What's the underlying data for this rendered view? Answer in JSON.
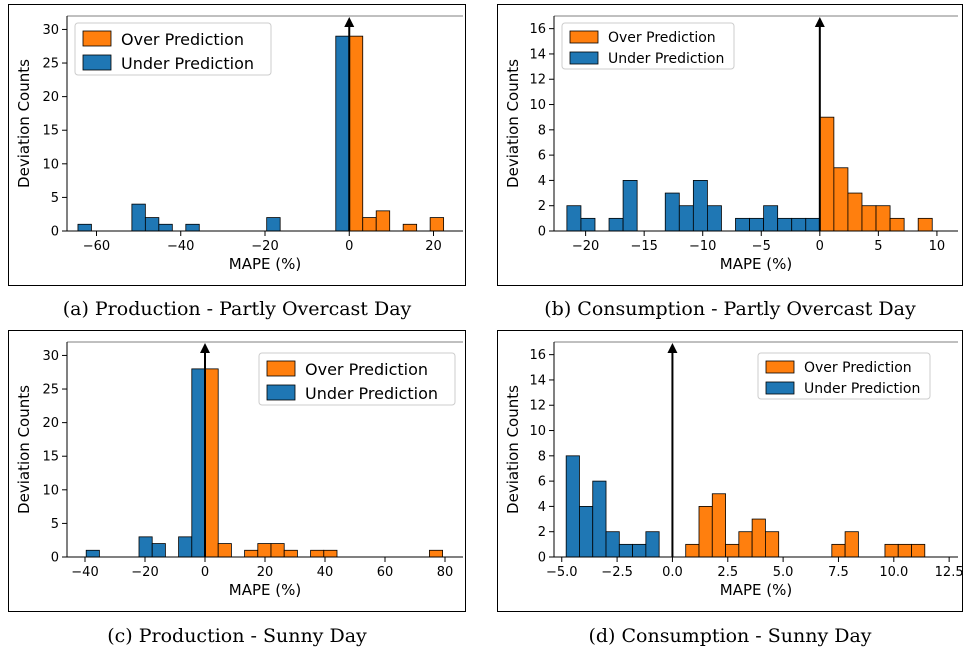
{
  "colors": {
    "over": "#ff7f0e",
    "under": "#1f77b4",
    "axis": "#000000"
  },
  "captions": [
    "(a) Production - Partly Overcast Day",
    "(b) Consumption - Partly Overcast Day",
    "(c) Production - Sunny Day",
    "(d) Consumption - Sunny Day"
  ],
  "chart_data": [
    {
      "type": "bar",
      "xlabel": "MAPE (%)",
      "ylabel": "Deviation Counts",
      "xlim": [
        -67,
        27
      ],
      "ylim": [
        0,
        32
      ],
      "xticks": [
        -60,
        -40,
        -20,
        0,
        20
      ],
      "yticks": [
        0,
        5,
        10,
        15,
        20,
        25,
        30
      ],
      "bin_width": 3.2,
      "arrow_x": 0,
      "legend": "top-left",
      "series": [
        {
          "name": "Over Prediction",
          "bars": [
            [
              0.0,
              29
            ],
            [
              3.2,
              2
            ],
            [
              6.4,
              3
            ],
            [
              12.8,
              1
            ],
            [
              19.2,
              2
            ]
          ]
        },
        {
          "name": "Under Prediction",
          "bars": [
            [
              -64.4,
              1
            ],
            [
              -51.6,
              4
            ],
            [
              -48.4,
              2
            ],
            [
              -45.2,
              1
            ],
            [
              -38.8,
              1
            ],
            [
              -19.6,
              2
            ],
            [
              -3.2,
              29
            ]
          ]
        }
      ]
    },
    {
      "type": "bar",
      "xlabel": "MAPE (%)",
      "ylabel": "Deviation Counts",
      "xlim": [
        -22.7,
        11.8
      ],
      "ylim": [
        0,
        17
      ],
      "xticks": [
        -20,
        -15,
        -10,
        -5,
        0,
        5,
        10
      ],
      "yticks": [
        0,
        2,
        4,
        6,
        8,
        10,
        12,
        14,
        16
      ],
      "bin_width": 1.2,
      "arrow_x": 0,
      "legend": "top-left",
      "series": [
        {
          "name": "Over Prediction",
          "bars": [
            [
              0.0,
              9
            ],
            [
              1.2,
              5
            ],
            [
              2.4,
              3
            ],
            [
              3.6,
              2
            ],
            [
              4.8,
              2
            ],
            [
              6.0,
              1
            ],
            [
              8.4,
              1
            ]
          ]
        },
        {
          "name": "Under Prediction",
          "bars": [
            [
              -21.6,
              2
            ],
            [
              -20.4,
              1
            ],
            [
              -18.0,
              1
            ],
            [
              -16.8,
              4
            ],
            [
              -13.2,
              3
            ],
            [
              -12.0,
              2
            ],
            [
              -10.8,
              4
            ],
            [
              -9.6,
              2
            ],
            [
              -7.2,
              1
            ],
            [
              -6.0,
              1
            ],
            [
              -4.8,
              2
            ],
            [
              -3.6,
              1
            ],
            [
              -2.4,
              1
            ],
            [
              -1.2,
              1
            ]
          ]
        }
      ]
    },
    {
      "type": "bar",
      "xlabel": "MAPE (%)",
      "ylabel": "Deviation Counts",
      "xlim": [
        -46,
        86
      ],
      "ylim": [
        0,
        32
      ],
      "xticks": [
        -40,
        -20,
        0,
        20,
        40,
        60,
        80
      ],
      "yticks": [
        0,
        5,
        10,
        15,
        20,
        25,
        30
      ],
      "bin_width": 4.4,
      "arrow_x": 0,
      "legend": "top-right",
      "series": [
        {
          "name": "Over Prediction",
          "bars": [
            [
              0.0,
              28
            ],
            [
              4.4,
              2
            ],
            [
              13.2,
              1
            ],
            [
              17.6,
              2
            ],
            [
              22.0,
              2
            ],
            [
              26.4,
              1
            ],
            [
              35.2,
              1
            ],
            [
              39.6,
              1
            ],
            [
              74.8,
              1
            ]
          ]
        },
        {
          "name": "Under Prediction",
          "bars": [
            [
              -39.6,
              1
            ],
            [
              -22.0,
              3
            ],
            [
              -17.6,
              2
            ],
            [
              -8.8,
              3
            ],
            [
              -4.4,
              28
            ]
          ]
        }
      ]
    },
    {
      "type": "bar",
      "xlabel": "MAPE (%)",
      "ylabel": "Deviation Counts",
      "xlim": [
        -5.35,
        12.9
      ],
      "ylim": [
        0,
        17
      ],
      "xticks": [
        -5.0,
        -2.5,
        0.0,
        2.5,
        5.0,
        7.5,
        10.0,
        12.5
      ],
      "xticklabels": [
        "−5.0",
        "−2.5",
        "0.0",
        "2.5",
        "5.0",
        "7.5",
        "10.0",
        "12.5"
      ],
      "yticks": [
        0,
        2,
        4,
        6,
        8,
        10,
        12,
        14,
        16
      ],
      "bin_width": 0.6,
      "arrow_x": 0,
      "legend": "top-right",
      "series": [
        {
          "name": "Over Prediction",
          "bars": [
            [
              0.6,
              1
            ],
            [
              1.2,
              4
            ],
            [
              1.8,
              5
            ],
            [
              2.4,
              1
            ],
            [
              3.0,
              2
            ],
            [
              3.6,
              3
            ],
            [
              4.2,
              2
            ],
            [
              7.2,
              1
            ],
            [
              7.8,
              2
            ],
            [
              9.6,
              1
            ],
            [
              10.2,
              1
            ],
            [
              10.8,
              1
            ]
          ]
        },
        {
          "name": "Under Prediction",
          "bars": [
            [
              -4.8,
              8
            ],
            [
              -4.2,
              4
            ],
            [
              -3.6,
              6
            ],
            [
              -3.0,
              2
            ],
            [
              -2.4,
              1
            ],
            [
              -1.8,
              1
            ],
            [
              -1.2,
              2
            ]
          ]
        }
      ]
    }
  ]
}
